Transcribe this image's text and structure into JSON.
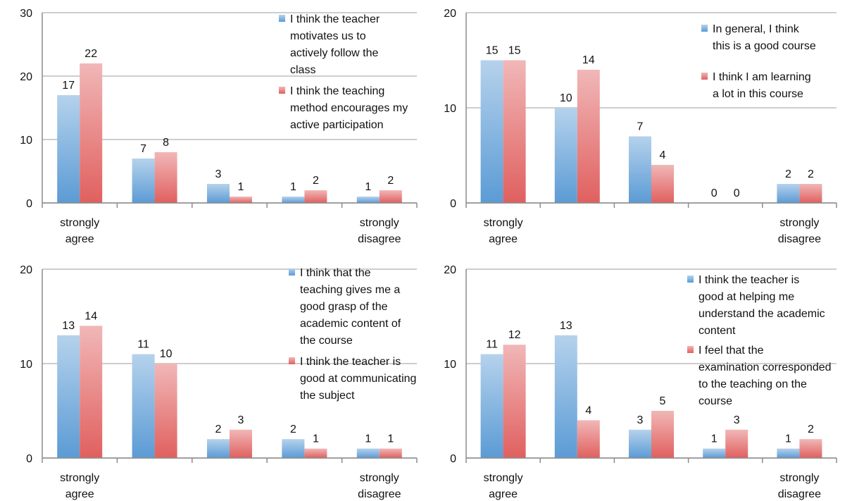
{
  "colors": {
    "series1": "#5b9bd5",
    "series2": "#e0605f",
    "grid": "#bdbdbd"
  },
  "chart_data": [
    {
      "type": "bar",
      "categories": [
        "strongly agree",
        "",
        "",
        "",
        "strongly disagree"
      ],
      "ylim": [
        0,
        30
      ],
      "yticks": [
        0,
        10,
        20,
        30
      ],
      "grid": true,
      "legend": "top-right",
      "series": [
        {
          "name": "I think the teacher motivates us to actively follow the class",
          "values": [
            17,
            7,
            3,
            1,
            1
          ]
        },
        {
          "name": "I think the teaching method encourages my active participation",
          "values": [
            22,
            8,
            1,
            2,
            2
          ]
        }
      ]
    },
    {
      "type": "bar",
      "categories": [
        "strongly agree",
        "",
        "",
        "",
        "strongly disagree"
      ],
      "ylim": [
        0,
        20
      ],
      "yticks": [
        0,
        10,
        20
      ],
      "grid": true,
      "legend": "top-right",
      "series": [
        {
          "name": "In general, I think this is a good course",
          "values": [
            15,
            10,
            7,
            0,
            2
          ]
        },
        {
          "name": "I think I am learning a lot in this course",
          "values": [
            15,
            14,
            4,
            0,
            2
          ]
        }
      ]
    },
    {
      "type": "bar",
      "categories": [
        "strongly agree",
        "",
        "",
        "",
        "strongly disagree"
      ],
      "ylim": [
        0,
        20
      ],
      "yticks": [
        0,
        10,
        20
      ],
      "grid": true,
      "legend": "top-right",
      "series": [
        {
          "name": "I think that the teaching gives me a good grasp of the academic content of the course",
          "values": [
            13,
            11,
            2,
            2,
            1
          ]
        },
        {
          "name": "I think the teacher is good at communicating the subject",
          "values": [
            14,
            10,
            3,
            1,
            1
          ]
        }
      ]
    },
    {
      "type": "bar",
      "categories": [
        "strongly agree",
        "",
        "",
        "",
        "strongly disagree"
      ],
      "ylim": [
        0,
        20
      ],
      "yticks": [
        0,
        10,
        20
      ],
      "grid": true,
      "legend": "top-right",
      "series": [
        {
          "name": "I think the teacher is good at helping me understand the academic content",
          "values": [
            11,
            13,
            3,
            1,
            1
          ]
        },
        {
          "name": "I feel that the examination corresponded to the teaching on the course",
          "values": [
            12,
            4,
            5,
            3,
            2
          ]
        }
      ]
    }
  ]
}
